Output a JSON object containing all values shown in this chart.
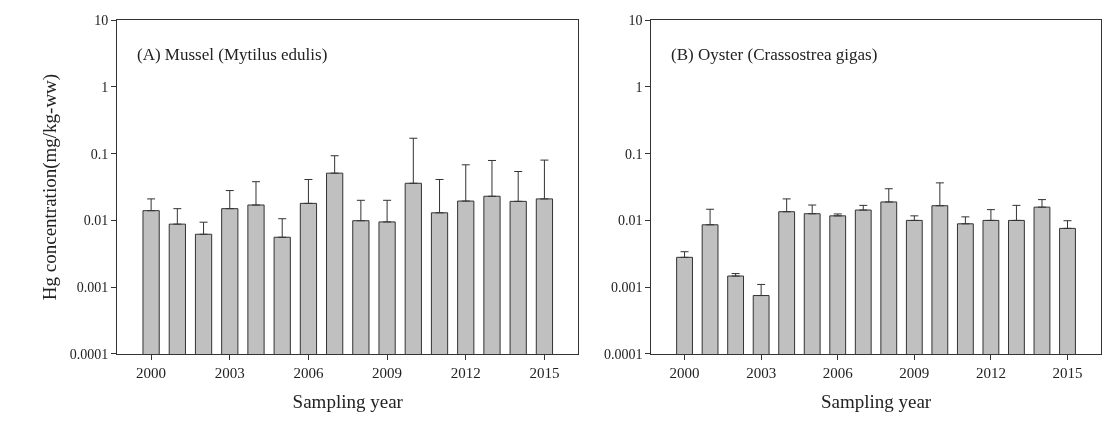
{
  "chart_data": [
    {
      "type": "bar",
      "title": "(A) Mussel (Mytilus edulis)",
      "xlabel": "Sampling year",
      "ylabel": "Hg concentration(mg/kg-ww)",
      "x": [
        2000,
        2001,
        2002,
        2003,
        2004,
        2005,
        2006,
        2007,
        2008,
        2009,
        2010,
        2011,
        2012,
        2013,
        2014,
        2015
      ],
      "series": [
        {
          "color": "#c0c0c0",
          "values": [
            0.014,
            0.0088,
            0.0062,
            0.015,
            0.017,
            0.0056,
            0.018,
            0.051,
            0.0099,
            0.0095,
            0.036,
            0.013,
            0.0195,
            0.023,
            0.0193,
            0.021
          ],
          "errors": [
            [
              0.014,
              0.021
            ],
            [
              0.0088,
              0.015
            ],
            [
              0.0062,
              0.0094
            ],
            [
              0.015,
              0.028
            ],
            [
              0.017,
              0.038
            ],
            [
              0.0056,
              0.0106
            ],
            [
              0.018,
              0.041
            ],
            [
              0.051,
              0.093
            ],
            [
              0.0099,
              0.02
            ],
            [
              0.0095,
              0.02
            ],
            [
              0.036,
              0.17
            ],
            [
              0.013,
              0.041
            ],
            [
              0.0195,
              0.068
            ],
            [
              0.023,
              0.079
            ],
            [
              0.0193,
              0.054
            ],
            [
              0.021,
              0.08
            ]
          ]
        }
      ],
      "log": "y",
      "xlim": [
        1998.7,
        2016.3
      ],
      "xticks": [
        2000,
        2003,
        2006,
        2009,
        2012,
        2015
      ],
      "ylim": [
        0.0001,
        10
      ],
      "yticks": [
        0.0001,
        0.001,
        0.01,
        0.1,
        1,
        10
      ]
    },
    {
      "type": "bar",
      "title": "(B) Oyster (Crassostrea gigas)",
      "xlabel": "Sampling year",
      "x": [
        2000,
        2001,
        2002,
        2003,
        2004,
        2005,
        2006,
        2007,
        2008,
        2009,
        2010,
        2011,
        2012,
        2013,
        2014,
        2015
      ],
      "series": [
        {
          "color": "#c0c0c0",
          "values": [
            0.0028,
            0.0086,
            0.00147,
            0.00075,
            0.0135,
            0.0126,
            0.0117,
            0.0143,
            0.0189,
            0.01,
            0.0166,
            0.0089,
            0.01,
            0.01,
            0.0158,
            0.0076
          ],
          "errors": [
            [
              0.0028,
              0.0034
            ],
            [
              0.0086,
              0.0147
            ],
            [
              0.00147,
              0.0016
            ],
            [
              0.00075,
              0.0011
            ],
            [
              0.0135,
              0.021
            ],
            [
              0.0126,
              0.017
            ],
            [
              0.0117,
              0.0125
            ],
            [
              0.0143,
              0.0168
            ],
            [
              0.0189,
              0.0298
            ],
            [
              0.01,
              0.0117
            ],
            [
              0.0166,
              0.0365
            ],
            [
              0.0089,
              0.0113
            ],
            [
              0.01,
              0.0145
            ],
            [
              0.01,
              0.0168
            ],
            [
              0.0158,
              0.0205
            ],
            [
              0.0076,
              0.0099
            ]
          ]
        }
      ],
      "log": "y",
      "xlim": [
        1998.7,
        2016.3
      ],
      "xticks": [
        2000,
        2003,
        2006,
        2009,
        2012,
        2015
      ],
      "ylim": [
        0.0001,
        10
      ],
      "yticks": [
        0.0001,
        0.001,
        0.01,
        0.1,
        1,
        10
      ]
    }
  ]
}
